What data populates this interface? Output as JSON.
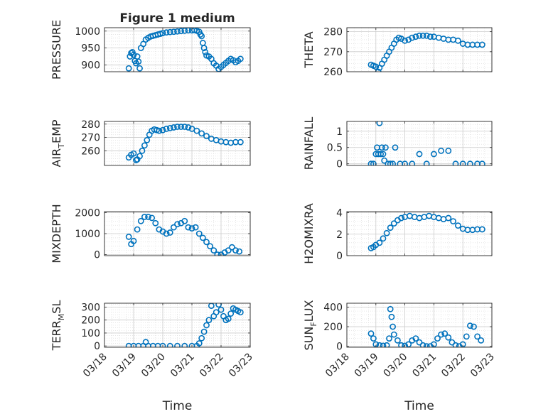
{
  "figure_title": "Figure 1 medium",
  "xlabel": "Time",
  "x_ticks": [
    "03/18",
    "03/19",
    "03/20",
    "03/21",
    "03/22",
    "03/23"
  ],
  "colors": {
    "marker": "#0072BD",
    "axis": "#262626",
    "grid": "#d9d9d9"
  },
  "chart_data": [
    {
      "type": "scatter",
      "name": "PRESSURE",
      "ylabel": "PRESSURE",
      "title": "Figure 1 medium",
      "xlim": [
        "03/18",
        "03/23"
      ],
      "ylim": [
        880,
        1010
      ],
      "yticks": [
        900,
        950,
        1000
      ],
      "x": [
        "03/18 20:00",
        "03/18 21:00",
        "03/18 22:00",
        "03/18 23:00",
        "03/19 00:00",
        "03/19 01:00",
        "03/19 02:00",
        "03/19 03:00",
        "03/19 04:00",
        "03/19 05:00",
        "03/19 06:00",
        "03/19 08:00",
        "03/19 10:00",
        "03/19 12:00",
        "03/19 14:00",
        "03/19 16:00",
        "03/19 18:00",
        "03/19 20:00",
        "03/19 22:00",
        "03/20 00:00",
        "03/20 03:00",
        "03/20 06:00",
        "03/20 09:00",
        "03/20 12:00",
        "03/20 15:00",
        "03/20 18:00",
        "03/20 21:00",
        "03/21 00:00",
        "03/21 02:00",
        "03/21 04:00",
        "03/21 06:00",
        "03/21 07:00",
        "03/21 08:00",
        "03/21 09:00",
        "03/21 10:00",
        "03/21 11:00",
        "03/21 12:00",
        "03/21 14:00",
        "03/21 16:00",
        "03/21 18:00",
        "03/21 20:00",
        "03/21 22:00",
        "03/22 00:00",
        "03/22 02:00",
        "03/22 04:00",
        "03/22 06:00",
        "03/22 08:00",
        "03/22 10:00",
        "03/22 12:00",
        "03/22 14:00",
        "03/22 16:00"
      ],
      "y": [
        890,
        925,
        935,
        938,
        930,
        912,
        905,
        925,
        910,
        890,
        950,
        962,
        975,
        980,
        984,
        986,
        988,
        990,
        992,
        994,
        996,
        997,
        998,
        999,
        1000,
        1001,
        1002,
        1002,
        1003,
        1001,
        998,
        990,
        985,
        965,
        950,
        938,
        928,
        925,
        918,
        905,
        898,
        888,
        894,
        900,
        906,
        912,
        918,
        914,
        908,
        912,
        918
      ]
    },
    {
      "type": "scatter",
      "name": "THETA",
      "ylabel": "THETA",
      "xlim": [
        "03/18",
        "03/23"
      ],
      "ylim": [
        260,
        282
      ],
      "yticks": [
        260,
        270,
        280
      ],
      "x": [
        "03/18 20:00",
        "03/18 22:00",
        "03/19 00:00",
        "03/19 02:00",
        "03/19 03:00",
        "03/19 05:00",
        "03/19 07:00",
        "03/19 09:00",
        "03/19 11:00",
        "03/19 13:00",
        "03/19 15:00",
        "03/19 17:00",
        "03/19 19:00",
        "03/19 21:00",
        "03/20 00:00",
        "03/20 03:00",
        "03/20 06:00",
        "03/20 09:00",
        "03/20 12:00",
        "03/20 15:00",
        "03/20 18:00",
        "03/20 21:00",
        "03/21 00:00",
        "03/21 04:00",
        "03/21 08:00",
        "03/21 12:00",
        "03/21 16:00",
        "03/21 20:00",
        "03/22 00:00",
        "03/22 04:00",
        "03/22 08:00",
        "03/22 12:00",
        "03/22 16:00"
      ],
      "y": [
        263.5,
        263,
        262.5,
        260,
        262,
        264,
        266,
        268,
        270,
        272,
        274,
        276,
        277,
        276.5,
        275.5,
        276,
        277,
        277.5,
        278,
        278,
        278,
        277.5,
        277.5,
        277,
        276.5,
        276,
        276,
        275.5,
        274,
        273.5,
        273.5,
        273.5,
        273.5
      ]
    },
    {
      "type": "scatter",
      "name": "AIR_TEMP",
      "ylabel": "AIR_TEMP",
      "xlim": [
        "03/18",
        "03/23"
      ],
      "ylim": [
        249,
        282
      ],
      "yticks": [
        260,
        270,
        280
      ],
      "x": [
        "03/18 20:00",
        "03/18 22:00",
        "03/19 00:00",
        "03/19 02:00",
        "03/19 03:00",
        "03/19 05:00",
        "03/19 07:00",
        "03/19 09:00",
        "03/19 11:00",
        "03/19 13:00",
        "03/19 15:00",
        "03/19 17:00",
        "03/19 19:00",
        "03/19 21:00",
        "03/20 00:00",
        "03/20 03:00",
        "03/20 06:00",
        "03/20 09:00",
        "03/20 12:00",
        "03/20 15:00",
        "03/20 18:00",
        "03/20 21:00",
        "03/21 00:00",
        "03/21 04:00",
        "03/21 08:00",
        "03/21 12:00",
        "03/21 16:00",
        "03/21 20:00",
        "03/22 00:00",
        "03/22 04:00",
        "03/22 08:00",
        "03/22 12:00",
        "03/22 16:00"
      ],
      "y": [
        255,
        257,
        258,
        253,
        253.5,
        256,
        260,
        264,
        268,
        272,
        275,
        276,
        275.5,
        275,
        275.5,
        276.5,
        277,
        277.5,
        278,
        278,
        278,
        277.5,
        276.5,
        275,
        273,
        271,
        269,
        268,
        267,
        266.5,
        266,
        266.5,
        266.5
      ]
    },
    {
      "type": "scatter",
      "name": "RAINFALL",
      "ylabel": "RAINFALL",
      "xlim": [
        "03/18",
        "03/23"
      ],
      "ylim": [
        -0.05,
        1.3
      ],
      "yticks": [
        0,
        0.5,
        1
      ],
      "x": [
        "03/18 20:00",
        "03/18 22:00",
        "03/19 00:00",
        "03/19 01:00",
        "03/19 02:00",
        "03/19 03:00",
        "03/19 04:00",
        "03/19 05:00",
        "03/19 06:00",
        "03/19 07:00",
        "03/19 08:00",
        "03/19 10:00",
        "03/19 12:00",
        "03/19 14:00",
        "03/19 16:00",
        "03/19 20:00",
        "03/20 00:00",
        "03/20 06:00",
        "03/20 12:00",
        "03/20 18:00",
        "03/21 00:00",
        "03/21 06:00",
        "03/21 12:00",
        "03/21 18:00",
        "03/22 00:00",
        "03/22 06:00",
        "03/22 12:00",
        "03/22 16:00"
      ],
      "y": [
        0,
        0,
        0.3,
        0.5,
        0.3,
        1.25,
        0.3,
        0.5,
        0.3,
        0.1,
        0.5,
        0,
        0,
        0,
        0.5,
        0,
        0,
        0,
        0.3,
        0,
        0.3,
        0.4,
        0.4,
        0,
        0,
        0,
        0,
        0
      ]
    },
    {
      "type": "scatter",
      "name": "MIXDEPTH",
      "ylabel": "MIXDEPTH",
      "xlim": [
        "03/18",
        "03/23"
      ],
      "ylim": [
        -50,
        2050
      ],
      "yticks": [
        0,
        1000,
        2000
      ],
      "x": [
        "03/18 20:00",
        "03/18 22:00",
        "03/19 00:00",
        "03/19 03:00",
        "03/19 06:00",
        "03/19 09:00",
        "03/19 12:00",
        "03/19 15:00",
        "03/19 18:00",
        "03/19 21:00",
        "03/20 00:00",
        "03/20 03:00",
        "03/20 06:00",
        "03/20 09:00",
        "03/20 12:00",
        "03/20 15:00",
        "03/20 18:00",
        "03/20 21:00",
        "03/21 00:00",
        "03/21 03:00",
        "03/21 06:00",
        "03/21 09:00",
        "03/21 12:00",
        "03/21 15:00",
        "03/21 18:00",
        "03/21 21:00",
        "03/22 00:00",
        "03/22 03:00",
        "03/22 06:00",
        "03/22 09:00",
        "03/22 12:00",
        "03/22 15:00"
      ],
      "y": [
        850,
        500,
        650,
        1200,
        1600,
        1800,
        1800,
        1750,
        1500,
        1200,
        1100,
        1000,
        1050,
        1300,
        1450,
        1500,
        1600,
        1300,
        1250,
        1300,
        1000,
        800,
        600,
        400,
        200,
        0,
        0,
        100,
        200,
        350,
        200,
        150
      ]
    },
    {
      "type": "scatter",
      "name": "H2OMIXRA",
      "ylabel": "H2OMIXRA",
      "xlim": [
        "03/18",
        "03/23"
      ],
      "ylim": [
        0,
        4.1
      ],
      "yticks": [
        0,
        2,
        4
      ],
      "x": [
        "03/18 20:00",
        "03/18 22:00",
        "03/19 00:00",
        "03/19 03:00",
        "03/19 06:00",
        "03/19 09:00",
        "03/19 12:00",
        "03/19 15:00",
        "03/19 18:00",
        "03/19 21:00",
        "03/20 00:00",
        "03/20 04:00",
        "03/20 08:00",
        "03/20 12:00",
        "03/20 16:00",
        "03/20 20:00",
        "03/21 00:00",
        "03/21 04:00",
        "03/21 08:00",
        "03/21 12:00",
        "03/21 16:00",
        "03/21 20:00",
        "03/22 00:00",
        "03/22 04:00",
        "03/22 08:00",
        "03/22 12:00",
        "03/22 16:00"
      ],
      "y": [
        0.7,
        0.8,
        1.0,
        1.2,
        1.6,
        2.1,
        2.6,
        3.0,
        3.3,
        3.5,
        3.6,
        3.7,
        3.6,
        3.5,
        3.6,
        3.7,
        3.6,
        3.5,
        3.4,
        3.5,
        3.2,
        2.8,
        2.5,
        2.4,
        2.4,
        2.45,
        2.45
      ]
    },
    {
      "type": "scatter",
      "name": "TERR_MSL",
      "ylabel": "TERR_MSL",
      "xlim": [
        "03/18",
        "03/23"
      ],
      "ylim": [
        -10,
        330
      ],
      "yticks": [
        0,
        100,
        200,
        300
      ],
      "x": [
        "03/18 20:00",
        "03/19 00:00",
        "03/19 04:00",
        "03/19 08:00",
        "03/19 10:00",
        "03/19 12:00",
        "03/19 16:00",
        "03/19 20:00",
        "03/20 00:00",
        "03/20 06:00",
        "03/20 12:00",
        "03/20 18:00",
        "03/21 00:00",
        "03/21 04:00",
        "03/21 06:00",
        "03/21 08:00",
        "03/21 10:00",
        "03/21 12:00",
        "03/21 14:00",
        "03/21 16:00",
        "03/21 18:00",
        "03/21 20:00",
        "03/21 22:00",
        "03/22 00:00",
        "03/22 02:00",
        "03/22 04:00",
        "03/22 06:00",
        "03/22 08:00",
        "03/22 10:00",
        "03/22 12:00",
        "03/22 14:00",
        "03/22 16:00"
      ],
      "y": [
        0,
        0,
        0,
        0,
        30,
        0,
        0,
        0,
        0,
        0,
        0,
        0,
        0,
        0,
        20,
        60,
        110,
        160,
        200,
        310,
        230,
        260,
        320,
        280,
        230,
        200,
        210,
        250,
        290,
        280,
        270,
        260
      ]
    },
    {
      "type": "scatter",
      "name": "SUN_FLUX",
      "ylabel": "SUN_FLUX",
      "xlim": [
        "03/18",
        "03/23"
      ],
      "ylim": [
        -10,
        440
      ],
      "yticks": [
        0,
        200,
        400
      ],
      "x": [
        "03/18 20:00",
        "03/18 22:00",
        "03/19 00:00",
        "03/19 03:00",
        "03/19 06:00",
        "03/19 09:00",
        "03/19 11:00",
        "03/19 12:00",
        "03/19 13:00",
        "03/19 14:00",
        "03/19 15:00",
        "03/19 18:00",
        "03/19 21:00",
        "03/20 00:00",
        "03/20 03:00",
        "03/20 06:00",
        "03/20 09:00",
        "03/20 12:00",
        "03/20 15:00",
        "03/20 18:00",
        "03/20 21:00",
        "03/21 00:00",
        "03/21 03:00",
        "03/21 06:00",
        "03/21 09:00",
        "03/21 12:00",
        "03/21 15:00",
        "03/21 18:00",
        "03/21 21:00",
        "03/22 00:00",
        "03/22 03:00",
        "03/22 06:00",
        "03/22 09:00",
        "03/22 12:00",
        "03/22 15:00"
      ],
      "y": [
        130,
        80,
        20,
        10,
        5,
        10,
        80,
        380,
        300,
        200,
        120,
        60,
        10,
        5,
        20,
        60,
        80,
        40,
        10,
        0,
        0,
        20,
        80,
        120,
        130,
        90,
        40,
        10,
        0,
        20,
        100,
        210,
        200,
        100,
        60
      ]
    }
  ]
}
